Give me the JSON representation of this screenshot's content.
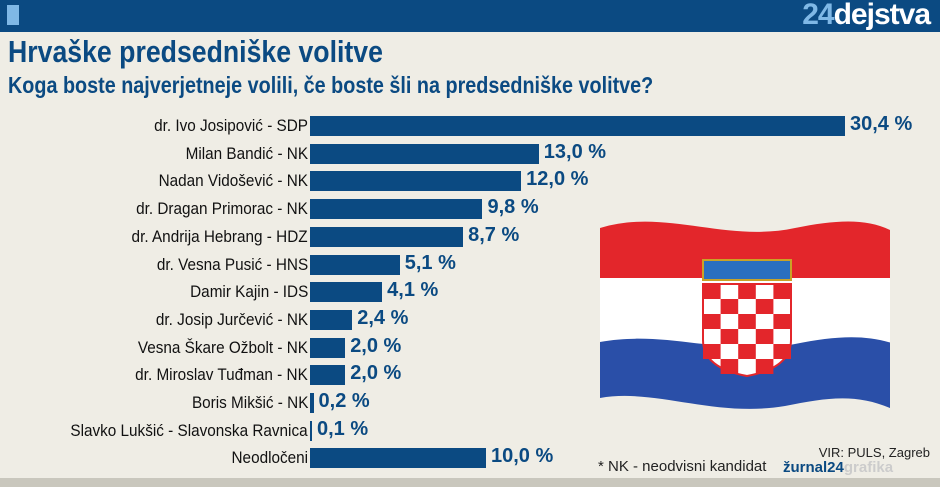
{
  "header": {
    "logo_num": "24",
    "logo_text": "dejstva"
  },
  "chart_data": {
    "type": "bar",
    "orientation": "horizontal",
    "title": "Hrvaške predsedniške volitve",
    "subtitle": "Koga boste najverjetneje volili, če boste šli na predsedniške volitve?",
    "categories": [
      "dr. Ivo Josipović - SDP",
      "Milan Bandić - NK",
      "Nadan Vidošević - NK",
      "dr. Dragan Primorac - NK",
      "dr. Andrija Hebrang - HDZ",
      "dr. Vesna Pusić - HNS",
      "Damir Kajin - IDS",
      "dr. Josip Jurčević - NK",
      "Vesna Škare Ožbolt - NK",
      "dr. Miroslav Tuđman - NK",
      "Boris Mikšić - NK",
      "Slavko Lukšić - Slavonska Ravnica",
      "Neodločeni"
    ],
    "values": [
      30.4,
      13.0,
      12.0,
      9.8,
      8.7,
      5.1,
      4.1,
      2.4,
      2.0,
      2.0,
      0.2,
      0.1,
      10.0
    ],
    "labels": [
      "30,4 %",
      "13,0 %",
      "12,0 %",
      "9,8 %",
      "8,7 %",
      "5,1 %",
      "4,1 %",
      "2,4 %",
      "2,0 %",
      "2,0 %",
      "0,2 %",
      "0,1 %",
      "10,0 %"
    ],
    "bar_color": "#0b4a82"
  },
  "footer": {
    "source": "VIR: PULS, Zagreb",
    "note": "* NK - neodvisni kandidat",
    "brand_a": "žurnal24",
    "brand_b": "grafika"
  },
  "colors": {
    "header": "#0b4a82",
    "flag_red": "#e3262b",
    "flag_white": "#ffffff",
    "flag_blue": "#2a4fa8"
  }
}
